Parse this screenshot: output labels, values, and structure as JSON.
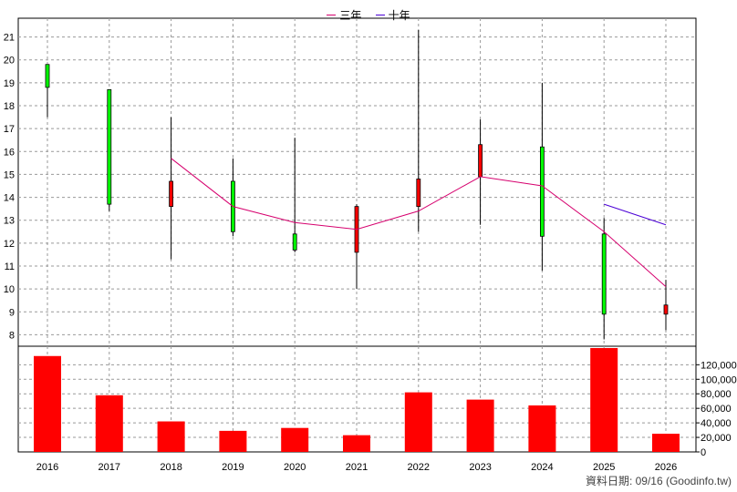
{
  "chart_data": {
    "type": "candlestick",
    "legend": [
      {
        "name": "三年",
        "color": "#d6006e"
      },
      {
        "name": "十年",
        "color": "#4b00d6"
      }
    ],
    "x": [
      "2016",
      "2017",
      "2018",
      "2019",
      "2020",
      "2021",
      "2022",
      "2023",
      "2024",
      "2025",
      "2026"
    ],
    "price_ylim": [
      7.5,
      21.5
    ],
    "price_ticks": [
      8,
      9,
      10,
      11,
      12,
      13,
      14,
      15,
      16,
      17,
      18,
      19,
      20,
      21
    ],
    "candles": [
      {
        "year": "2016",
        "open": 18.8,
        "close": 19.8,
        "high": 19.8,
        "low": 17.5
      },
      {
        "year": "2017",
        "open": 13.7,
        "close": 18.7,
        "high": 18.7,
        "low": 13.4
      },
      {
        "year": "2018",
        "open": 14.7,
        "close": 13.6,
        "high": 17.5,
        "low": 11.3
      },
      {
        "year": "2019",
        "open": 12.5,
        "close": 14.7,
        "high": 15.7,
        "low": 12.3
      },
      {
        "year": "2020",
        "open": 11.7,
        "close": 12.4,
        "high": 16.6,
        "low": 11.6
      },
      {
        "year": "2021",
        "open": 13.6,
        "close": 11.6,
        "high": 13.7,
        "low": 10.0
      },
      {
        "year": "2022",
        "open": 14.8,
        "close": 13.6,
        "high": 21.3,
        "low": 12.5
      },
      {
        "year": "2023",
        "open": 16.3,
        "close": 14.9,
        "high": 17.4,
        "low": 12.8
      },
      {
        "year": "2024",
        "open": 12.3,
        "close": 16.2,
        "high": 19.0,
        "low": 10.8
      },
      {
        "year": "2025",
        "open": 8.9,
        "close": 12.4,
        "high": 13.1,
        "low": 7.8
      },
      {
        "year": "2026",
        "open": 9.3,
        "close": 8.9,
        "high": 10.4,
        "low": 8.2
      }
    ],
    "series": [
      {
        "name": "三年",
        "x": [
          "2018",
          "2019",
          "2020",
          "2021",
          "2022",
          "2023",
          "2024",
          "2025",
          "2026"
        ],
        "values": [
          15.7,
          13.6,
          12.9,
          12.6,
          13.4,
          14.9,
          14.5,
          12.5,
          10.1
        ]
      },
      {
        "name": "十年",
        "x": [
          "2025",
          "2026"
        ],
        "values": [
          13.7,
          12.8
        ]
      }
    ],
    "volume": {
      "values": [
        132000,
        78000,
        42000,
        29000,
        33000,
        23000,
        82000,
        72000,
        64000,
        143000,
        25000
      ],
      "ylim": [
        0,
        143000
      ],
      "ticks": [
        0,
        20000,
        40000,
        60000,
        80000,
        100000,
        120000
      ],
      "tick_labels": [
        "0",
        "20,000",
        "40,000",
        "60,000",
        "80,000",
        "100,000",
        "120,000"
      ]
    },
    "grid": true
  },
  "footer": "資料日期: 09/16 (Goodinfo.tw)"
}
